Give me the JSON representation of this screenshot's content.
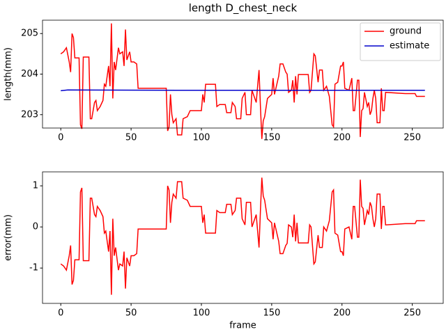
{
  "chart_data": [
    {
      "type": "line",
      "title": "length D_chest_neck",
      "ylabel": "length(mm)",
      "xlim": [
        -13,
        272
      ],
      "xticks": [
        0,
        50,
        100,
        150,
        200,
        250
      ],
      "ylim": [
        202.67,
        205.33
      ],
      "yticks": [
        203,
        204,
        205
      ],
      "legend": "upper right",
      "series": [
        {
          "name": "ground",
          "color": "#ff0000",
          "x": [
            0,
            2,
            4,
            6,
            7,
            8,
            9,
            10,
            13,
            14,
            15,
            16,
            20,
            21,
            22,
            24,
            25,
            26,
            28,
            30,
            31,
            32,
            34,
            35,
            36,
            37,
            38,
            39,
            41,
            42,
            44,
            45,
            46,
            47,
            49,
            50,
            52,
            54,
            55,
            75,
            76,
            77,
            78,
            79,
            80,
            82,
            83,
            86,
            87,
            90,
            92,
            100,
            101,
            102,
            103,
            110,
            111,
            113,
            117,
            118,
            121,
            122,
            124,
            125,
            128,
            129,
            131,
            132,
            135,
            136,
            139,
            140,
            141,
            142,
            143,
            144,
            145,
            147,
            150,
            151,
            152,
            155,
            156,
            158,
            160,
            161,
            162,
            164,
            165,
            166,
            167,
            168,
            169,
            176,
            177,
            178,
            180,
            181,
            183,
            184,
            186,
            187,
            189,
            191,
            193,
            194,
            195,
            197,
            199,
            200,
            201,
            202,
            205,
            207,
            208,
            209,
            211,
            212,
            213,
            214,
            215,
            216,
            218,
            219,
            220,
            221,
            222,
            223,
            224,
            225,
            227,
            228,
            229,
            230,
            231,
            245,
            252,
            253,
            259
          ],
          "values": [
            204.5,
            204.55,
            204.65,
            204.3,
            204.05,
            205.0,
            204.9,
            204.4,
            204.4,
            202.75,
            202.65,
            204.42,
            204.42,
            202.9,
            202.9,
            203.3,
            203.35,
            203.1,
            203.2,
            203.35,
            203.75,
            203.7,
            204.2,
            203.7,
            205.25,
            203.4,
            204.3,
            204.1,
            204.65,
            204.5,
            204.55,
            204.2,
            205.1,
            204.35,
            204.55,
            204.3,
            204.3,
            204.25,
            203.65,
            203.65,
            202.6,
            202.7,
            203.5,
            203.0,
            202.8,
            202.9,
            202.5,
            202.5,
            202.9,
            202.95,
            203.1,
            203.1,
            203.5,
            203.3,
            203.75,
            203.75,
            203.2,
            203.25,
            203.25,
            203.05,
            203.05,
            203.3,
            203.2,
            202.9,
            202.9,
            203.4,
            203.55,
            203.0,
            203.0,
            203.6,
            203.3,
            203.7,
            204.1,
            203.2,
            202.4,
            202.85,
            202.95,
            203.4,
            203.5,
            203.9,
            203.5,
            203.95,
            204.25,
            204.25,
            204.05,
            204.0,
            203.55,
            203.6,
            203.85,
            203.3,
            203.95,
            203.5,
            203.99,
            203.99,
            203.55,
            203.6,
            204.5,
            204.45,
            203.8,
            204.1,
            204.1,
            203.6,
            203.7,
            203.45,
            202.75,
            202.7,
            203.75,
            203.8,
            204.2,
            204.2,
            204.3,
            203.65,
            203.6,
            203.9,
            203.1,
            203.1,
            203.85,
            203.85,
            202.45,
            203.1,
            203.15,
            203.55,
            203.2,
            203.3,
            203.0,
            203.1,
            203.4,
            203.6,
            203.4,
            202.8,
            202.8,
            203.65,
            203.1,
            203.1,
            203.55,
            203.52,
            203.52,
            203.45,
            203.45
          ]
        },
        {
          "name": "estimate",
          "color": "#0000cc",
          "x": [
            0,
            5,
            100,
            259
          ],
          "values": [
            203.59,
            203.61,
            203.6,
            203.6
          ]
        }
      ]
    },
    {
      "type": "line",
      "xlabel": "frame",
      "ylabel": "error(mm)",
      "xlim": [
        -13,
        272
      ],
      "xticks": [
        0,
        50,
        100,
        150,
        200,
        250
      ],
      "ylim": [
        -1.86,
        1.34
      ],
      "yticks": [
        -1,
        0,
        1
      ],
      "series": [
        {
          "color": "#ff0000",
          "x": [
            0,
            2,
            4,
            6,
            7,
            8,
            9,
            10,
            13,
            14,
            15,
            16,
            20,
            21,
            22,
            24,
            25,
            26,
            28,
            30,
            31,
            32,
            34,
            35,
            36,
            37,
            38,
            39,
            41,
            42,
            44,
            45,
            46,
            47,
            49,
            50,
            52,
            54,
            55,
            75,
            76,
            77,
            78,
            79,
            80,
            82,
            83,
            86,
            87,
            90,
            92,
            100,
            101,
            102,
            103,
            110,
            111,
            113,
            117,
            118,
            121,
            122,
            124,
            125,
            128,
            129,
            131,
            132,
            135,
            136,
            139,
            140,
            141,
            142,
            143,
            144,
            145,
            147,
            150,
            151,
            152,
            155,
            156,
            158,
            160,
            161,
            162,
            164,
            165,
            166,
            167,
            168,
            169,
            176,
            177,
            178,
            180,
            181,
            183,
            184,
            186,
            187,
            189,
            191,
            193,
            194,
            195,
            197,
            199,
            200,
            201,
            202,
            205,
            207,
            208,
            209,
            211,
            212,
            213,
            214,
            215,
            216,
            218,
            219,
            220,
            221,
            222,
            223,
            224,
            225,
            227,
            228,
            229,
            230,
            231,
            245,
            252,
            253,
            259
          ],
          "values": [
            -0.9,
            -0.95,
            -1.05,
            -0.7,
            -0.45,
            -1.4,
            -1.3,
            -0.8,
            -0.8,
            0.85,
            0.95,
            -0.82,
            -0.82,
            0.7,
            0.7,
            0.3,
            0.25,
            0.5,
            0.4,
            0.25,
            -0.15,
            -0.1,
            -0.6,
            -0.1,
            -1.65,
            0.2,
            -0.7,
            -0.5,
            -1.05,
            -0.9,
            -0.95,
            -0.6,
            -1.5,
            -0.75,
            -0.95,
            -0.7,
            -0.7,
            -0.65,
            -0.05,
            -0.05,
            1.0,
            0.9,
            0.1,
            0.6,
            0.8,
            0.7,
            1.1,
            1.1,
            0.7,
            0.65,
            0.5,
            0.5,
            0.1,
            0.3,
            -0.15,
            -0.15,
            0.4,
            0.35,
            0.35,
            0.55,
            0.55,
            0.3,
            0.4,
            0.7,
            0.7,
            0.2,
            0.05,
            0.6,
            0.6,
            0,
            0.3,
            -0.1,
            -0.5,
            0.4,
            1.2,
            0.75,
            0.65,
            0.2,
            0.1,
            -0.3,
            0.1,
            -0.35,
            -0.65,
            -0.65,
            -0.45,
            -0.4,
            0.05,
            0,
            -0.25,
            0.3,
            -0.35,
            0.1,
            -0.39,
            -0.39,
            0.05,
            0,
            -0.9,
            -0.85,
            -0.2,
            -0.5,
            -0.5,
            0,
            -0.1,
            0.15,
            0.85,
            0.9,
            -0.15,
            -0.2,
            -0.6,
            -0.6,
            -0.7,
            -0.05,
            0,
            -0.3,
            0.5,
            0.5,
            -0.25,
            -0.25,
            1.15,
            0.5,
            0.45,
            0.05,
            0.4,
            0.3,
            0.6,
            0.5,
            0.2,
            0,
            0.2,
            0.8,
            0.8,
            -0.05,
            0.5,
            0.5,
            0.05,
            0.08,
            0.08,
            0.15,
            0.15
          ]
        }
      ]
    }
  ]
}
